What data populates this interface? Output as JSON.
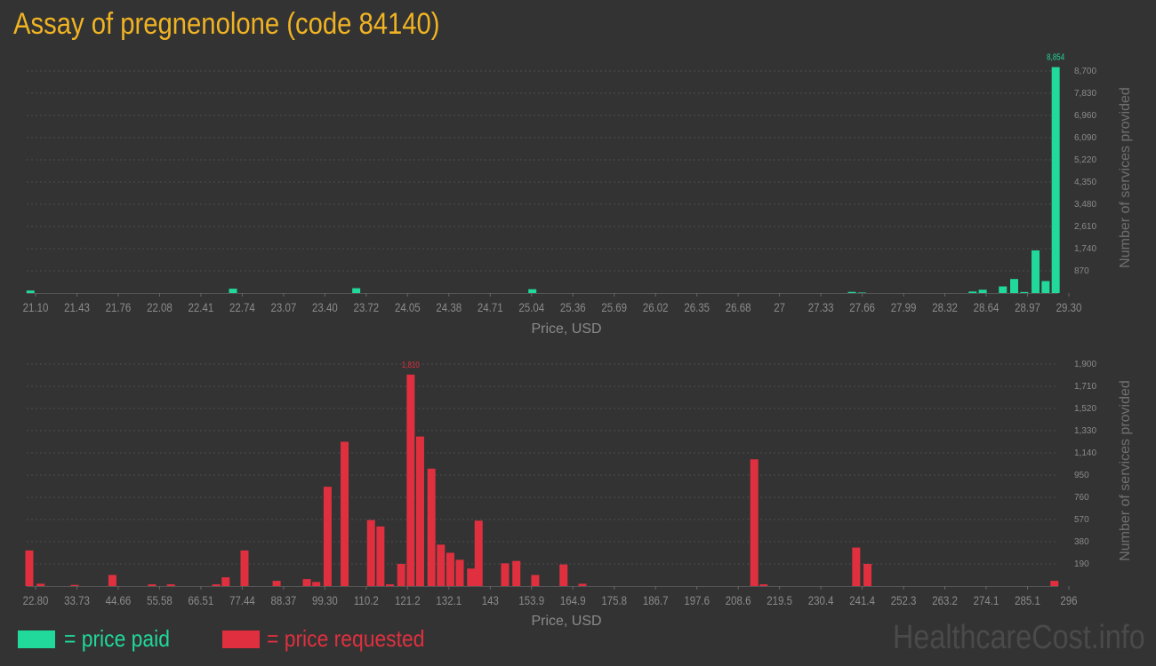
{
  "title": "Assay of pregnenolone (code 84140)",
  "legend": {
    "paid": "= price paid",
    "requested": "= price requested"
  },
  "watermark": "HealthcareCost.info",
  "colors": {
    "paid": "#20d99a",
    "requested": "#e0303f",
    "title": "#f0b323",
    "background": "#333333"
  },
  "chart_data": [
    {
      "type": "bar",
      "series_role": "price paid",
      "xlabel": "Price, USD",
      "ylabel": "Number of services provided",
      "x_ticks": [
        "21.10",
        "21.43",
        "21.76",
        "22.08",
        "22.41",
        "22.74",
        "23.07",
        "23.40",
        "23.72",
        "24.05",
        "24.38",
        "24.71",
        "25.04",
        "25.36",
        "25.69",
        "26.02",
        "26.35",
        "26.68",
        "27",
        "27.33",
        "27.66",
        "27.99",
        "28.32",
        "28.64",
        "28.97",
        "29.30"
      ],
      "y_ticks": [
        "870",
        "1,740",
        "2,610",
        "3,480",
        "4,350",
        "5,220",
        "6,090",
        "6,960",
        "7,830",
        "8,700"
      ],
      "y_tick_values": [
        870,
        1740,
        2610,
        3480,
        4350,
        5220,
        6090,
        6960,
        7830,
        8700
      ],
      "xlim": [
        21.1,
        29.3
      ],
      "ylim": [
        0,
        8700
      ],
      "max_label": "8,854",
      "bars": [
        {
          "x": 21.13,
          "value": 100
        },
        {
          "x": 22.74,
          "value": 170
        },
        {
          "x": 23.72,
          "value": 190
        },
        {
          "x": 25.12,
          "value": 150
        },
        {
          "x": 27.66,
          "value": 45
        },
        {
          "x": 27.74,
          "value": 20
        },
        {
          "x": 28.62,
          "value": 60
        },
        {
          "x": 28.7,
          "value": 130
        },
        {
          "x": 28.86,
          "value": 260
        },
        {
          "x": 28.95,
          "value": 550
        },
        {
          "x": 29.03,
          "value": 40
        },
        {
          "x": 29.12,
          "value": 1670
        },
        {
          "x": 29.2,
          "value": 470
        },
        {
          "x": 29.28,
          "value": 8854
        }
      ]
    },
    {
      "type": "bar",
      "series_role": "price requested",
      "xlabel": "Price, USD",
      "ylabel": "Number of services provided",
      "x_ticks": [
        "22.80",
        "33.73",
        "44.66",
        "55.58",
        "66.51",
        "77.44",
        "88.37",
        "99.30",
        "110.2",
        "121.2",
        "132.1",
        "143",
        "153.9",
        "164.9",
        "175.8",
        "186.7",
        "197.6",
        "208.6",
        "219.5",
        "230.4",
        "241.4",
        "252.3",
        "263.2",
        "274.1",
        "285.1",
        "296"
      ],
      "y_ticks": [
        "190",
        "380",
        "570",
        "760",
        "950",
        "1,140",
        "1,330",
        "1,520",
        "1,710",
        "1,900"
      ],
      "y_tick_values": [
        190,
        380,
        570,
        760,
        950,
        1140,
        1330,
        1520,
        1710,
        1900
      ],
      "xlim": [
        22.8,
        296
      ],
      "ylim": [
        0,
        1900
      ],
      "max_label": "1,810",
      "bars": [
        {
          "x": 23.5,
          "value": 305
        },
        {
          "x": 26.5,
          "value": 20
        },
        {
          "x": 35.5,
          "value": 10
        },
        {
          "x": 45.5,
          "value": 95
        },
        {
          "x": 56.0,
          "value": 15
        },
        {
          "x": 61.0,
          "value": 15
        },
        {
          "x": 73.0,
          "value": 15
        },
        {
          "x": 75.5,
          "value": 75
        },
        {
          "x": 80.5,
          "value": 305
        },
        {
          "x": 89.0,
          "value": 45
        },
        {
          "x": 97.0,
          "value": 60
        },
        {
          "x": 99.5,
          "value": 35
        },
        {
          "x": 102.5,
          "value": 850
        },
        {
          "x": 107.0,
          "value": 1235
        },
        {
          "x": 114.0,
          "value": 565
        },
        {
          "x": 116.5,
          "value": 510
        },
        {
          "x": 119.0,
          "value": 15
        },
        {
          "x": 122.0,
          "value": 190
        },
        {
          "x": 124.5,
          "value": 1810
        },
        {
          "x": 127.0,
          "value": 1280
        },
        {
          "x": 130.0,
          "value": 1005
        },
        {
          "x": 132.5,
          "value": 355
        },
        {
          "x": 135.0,
          "value": 285
        },
        {
          "x": 137.5,
          "value": 225
        },
        {
          "x": 140.5,
          "value": 150
        },
        {
          "x": 142.5,
          "value": 560
        },
        {
          "x": 149.5,
          "value": 195
        },
        {
          "x": 152.5,
          "value": 215
        },
        {
          "x": 157.5,
          "value": 95
        },
        {
          "x": 165.0,
          "value": 185
        },
        {
          "x": 170.0,
          "value": 20
        },
        {
          "x": 215.5,
          "value": 1085
        },
        {
          "x": 218.0,
          "value": 15
        },
        {
          "x": 242.5,
          "value": 330
        },
        {
          "x": 245.5,
          "value": 190
        },
        {
          "x": 295.0,
          "value": 45
        }
      ]
    }
  ]
}
